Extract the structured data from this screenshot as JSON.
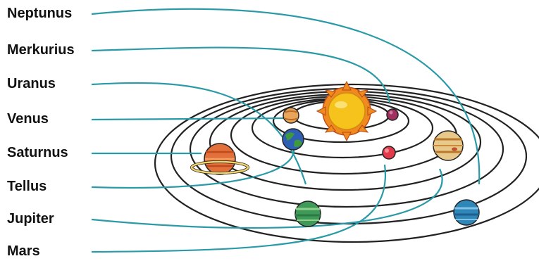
{
  "labels": [
    {
      "key": "neptunus",
      "text": "Neptunus"
    },
    {
      "key": "merkurius",
      "text": "Merkurius"
    },
    {
      "key": "uranus",
      "text": "Uranus"
    },
    {
      "key": "venus",
      "text": "Venus"
    },
    {
      "key": "saturnus",
      "text": "Saturnus"
    },
    {
      "key": "tellus",
      "text": "Tellus"
    },
    {
      "key": "jupiter",
      "text": "Jupiter"
    },
    {
      "key": "mars",
      "text": "Mars"
    }
  ],
  "colors": {
    "leader_line": "#2a9aa6",
    "orbit": "#222222",
    "sun": "#f6c21c",
    "sun_rays": "#f08a1e",
    "mercury": "#a0305e",
    "venus": "#e9a65b",
    "earth_land": "#3f9a3c",
    "earth_sea": "#2f5fb5",
    "mars": "#e23a4a",
    "jupiter": "#e8c98a",
    "saturn": "#e2703a",
    "saturn_ring": "#f2d36b",
    "uranus": "#3f9a5a",
    "neptune": "#2f86b8"
  }
}
